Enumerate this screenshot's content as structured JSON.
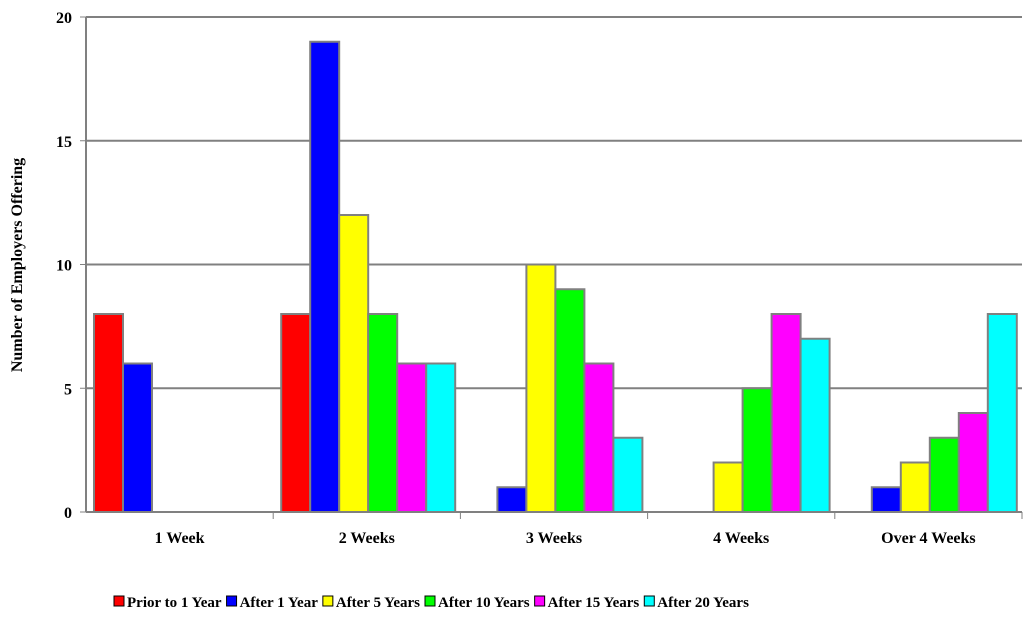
{
  "chart_data": {
    "type": "bar",
    "title": "",
    "xlabel": "",
    "ylabel": "Number of Employers Offering",
    "ylim": [
      0,
      20
    ],
    "yticks": [
      0,
      5,
      10,
      15,
      20
    ],
    "grid": true,
    "legend_position": "bottom",
    "categories": [
      "1 Week",
      "2 Weeks",
      "3 Weeks",
      "4 Weeks",
      "Over 4 Weeks"
    ],
    "series": [
      {
        "name": "Prior to 1 Year",
        "color": "#ff0000",
        "values": [
          8,
          8,
          0,
          0,
          0
        ]
      },
      {
        "name": "After 1 Year",
        "color": "#0000ff",
        "values": [
          6,
          19,
          1,
          0,
          1
        ]
      },
      {
        "name": "After 5 Years",
        "color": "#ffff00",
        "values": [
          0,
          12,
          10,
          2,
          2
        ]
      },
      {
        "name": "After 10 Years",
        "color": "#00ff00",
        "values": [
          0,
          8,
          9,
          5,
          3
        ]
      },
      {
        "name": "After 15 Years",
        "color": "#ff00ff",
        "values": [
          0,
          6,
          6,
          8,
          4
        ]
      },
      {
        "name": "After 20 Years",
        "color": "#00ffff",
        "values": [
          0,
          6,
          3,
          7,
          8
        ]
      }
    ]
  }
}
